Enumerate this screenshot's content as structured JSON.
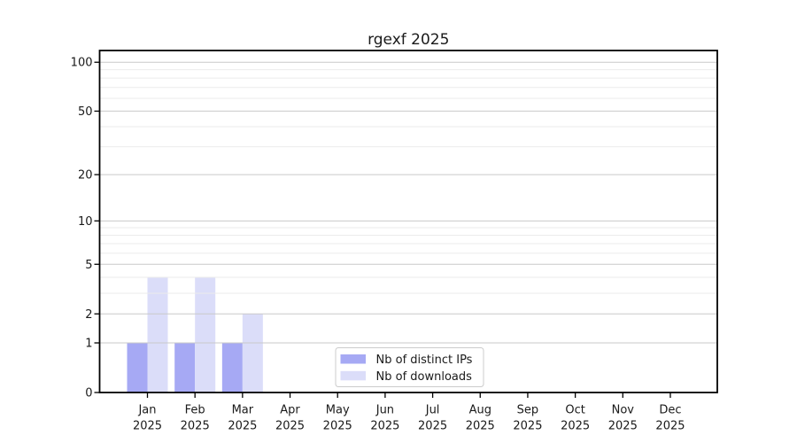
{
  "figure": {
    "background": "#ffffff"
  },
  "chart_data": {
    "type": "bar",
    "title": "rgexf 2025",
    "x_tick_line1": [
      "Jan",
      "Feb",
      "Mar",
      "Apr",
      "May",
      "Jun",
      "Jul",
      "Aug",
      "Sep",
      "Oct",
      "Nov",
      "Dec"
    ],
    "x_tick_line2": "2025",
    "series": [
      {
        "name": "Nb of distinct IPs",
        "color": "#a6a9f4",
        "values": [
          1,
          1,
          1,
          0,
          0,
          0,
          0,
          0,
          0,
          0,
          0,
          0
        ]
      },
      {
        "name": "Nb of downloads",
        "color": "#dbddf9",
        "values": [
          4,
          4,
          2,
          0,
          0,
          0,
          0,
          0,
          0,
          0,
          0,
          0
        ]
      }
    ],
    "y_scale": "log1p",
    "ylim": [
      0,
      118
    ],
    "y_major_ticks": [
      0,
      1,
      2,
      5,
      10,
      20,
      50,
      100
    ],
    "y_minor_gridlines": [
      3,
      4,
      6,
      7,
      8,
      9,
      30,
      40,
      60,
      70,
      80,
      90
    ],
    "grid": true,
    "legend": {
      "position": "bottom-center",
      "border_color": "#cccccc",
      "background": "#ffffff"
    },
    "colors": {
      "axis": "#000000",
      "major_grid": "#c9c9c9",
      "minor_grid": "#ebebeb",
      "text": "#1a1a1a"
    }
  }
}
